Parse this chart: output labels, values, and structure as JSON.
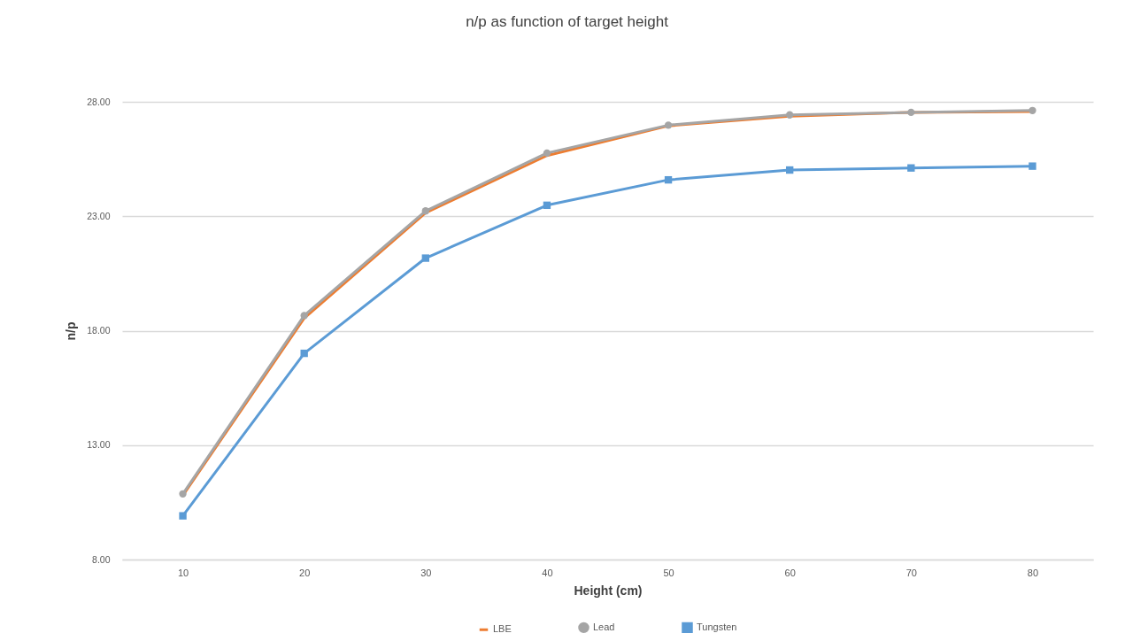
{
  "chart_data": {
    "type": "line",
    "title": "n/p as function of target height",
    "xlabel": "Height (cm)",
    "ylabel": "n/p",
    "categories": [
      "10",
      "20",
      "30",
      "40",
      "50",
      "60",
      "70",
      "80"
    ],
    "series": [
      {
        "name": "LBE",
        "color": "#ed7d31",
        "marker": "none",
        "values": [
          10.8,
          18.55,
          23.15,
          25.65,
          26.95,
          27.37,
          27.54,
          27.57
        ]
      },
      {
        "name": "Lead",
        "color": "#a5a5a5",
        "marker": "circle",
        "values": [
          10.87,
          18.66,
          23.23,
          25.76,
          26.98,
          27.43,
          27.54,
          27.62
        ]
      },
      {
        "name": "Tungsten",
        "color": "#5b9bd5",
        "marker": "square",
        "values": [
          9.91,
          17.01,
          21.17,
          23.48,
          24.59,
          25.02,
          25.11,
          25.19
        ]
      }
    ],
    "ylim": [
      8,
      28
    ],
    "yticks": [
      {
        "value": 8,
        "label": "8.00"
      },
      {
        "value": 13,
        "label": "13.00"
      },
      {
        "value": 18,
        "label": "18.00"
      },
      {
        "value": 23,
        "label": "23.00"
      },
      {
        "value": 28,
        "label": "28.00"
      }
    ],
    "grid": "y",
    "legend": "bottom"
  }
}
